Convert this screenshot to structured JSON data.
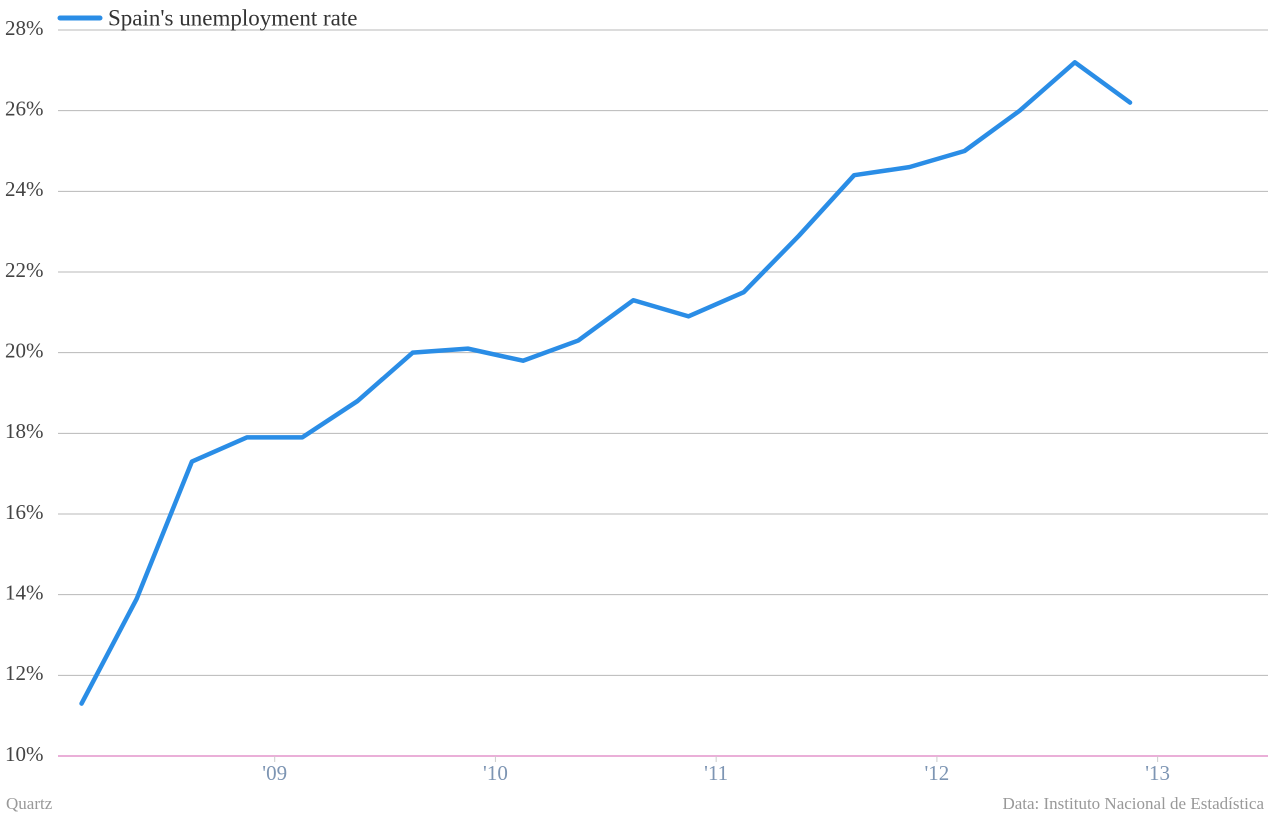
{
  "chart_data": {
    "type": "line",
    "series": [
      {
        "name": "Spain's unemployment rate",
        "color": "#2a8de6",
        "values": [
          11.3,
          13.9,
          17.3,
          17.9,
          17.9,
          18.8,
          20.0,
          20.1,
          19.8,
          20.3,
          21.3,
          20.9,
          21.5,
          22.9,
          24.4,
          24.6,
          25.0,
          26.0,
          27.2,
          26.2
        ]
      }
    ],
    "x": [
      2008.125,
      2008.375,
      2008.625,
      2008.875,
      2009.125,
      2009.375,
      2009.625,
      2009.875,
      2010.125,
      2010.375,
      2010.625,
      2010.875,
      2011.125,
      2011.375,
      2011.625,
      2011.875,
      2012.125,
      2012.375,
      2012.625,
      2012.875
    ],
    "xlim": [
      2008.05,
      2013.5
    ],
    "xticks": [
      {
        "value": 2009,
        "label": "'09"
      },
      {
        "value": 2010,
        "label": "'10"
      },
      {
        "value": 2011,
        "label": "'11"
      },
      {
        "value": 2012,
        "label": "'12"
      },
      {
        "value": 2013,
        "label": "'13"
      }
    ],
    "ylim": [
      10,
      28
    ],
    "yticks": [
      {
        "value": 10,
        "label": "10%"
      },
      {
        "value": 12,
        "label": "12%"
      },
      {
        "value": 14,
        "label": "14%"
      },
      {
        "value": 16,
        "label": "16%"
      },
      {
        "value": 18,
        "label": "18%"
      },
      {
        "value": 20,
        "label": "20%"
      },
      {
        "value": 22,
        "label": "22%"
      },
      {
        "value": 24,
        "label": "24%"
      },
      {
        "value": 26,
        "label": "26%"
      },
      {
        "value": 28,
        "label": "28%"
      }
    ],
    "grid": true,
    "axis_color": "#d45fb0",
    "legend": "top-left",
    "credit": "Quartz",
    "source": "Data: Instituto Nacional de Estadística"
  }
}
